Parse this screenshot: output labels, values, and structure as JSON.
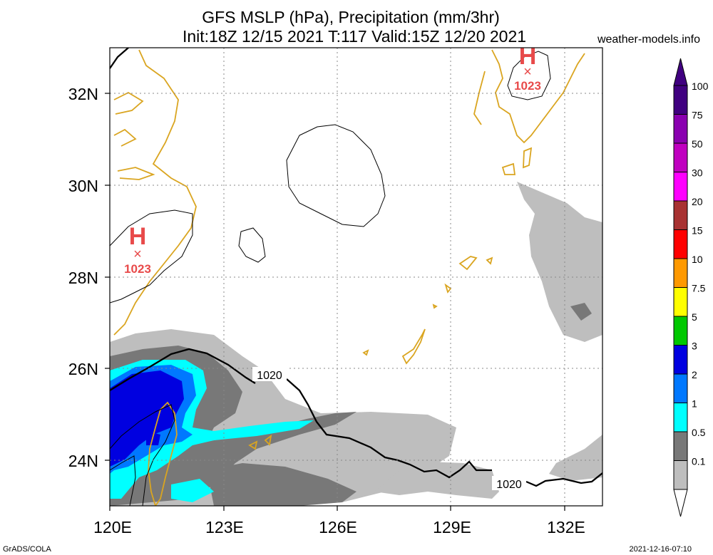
{
  "header": {
    "title_line1": "GFS MSLP (hPa), Precipitation (mm/3hr)",
    "title_line2": "Init:18Z 12/15 2021 T:117 Valid:15Z 12/20 2021",
    "site": "weather-models.info"
  },
  "footer": {
    "left": "GrADS/COLA",
    "right": "2021-12-16-07:10"
  },
  "map": {
    "lon_range": [
      120,
      133
    ],
    "lat_range": [
      23,
      33
    ],
    "lon_ticks": [
      "120E",
      "123E",
      "126E",
      "129E",
      "132E"
    ],
    "lat_ticks": [
      "32N",
      "30N",
      "28N",
      "26N",
      "24N"
    ],
    "coast_color": "#DAA520",
    "isobar_labels": [
      "1020",
      "1020"
    ],
    "pressure_centers": [
      {
        "symbol": "H",
        "value": "1023",
        "lon": 120.7,
        "lat": 28.6
      },
      {
        "symbol": "H",
        "value": "1023",
        "lon": 131.0,
        "lat": 32.5
      }
    ]
  },
  "legend": {
    "levels": [
      "100",
      "75",
      "50",
      "30",
      "20",
      "15",
      "10",
      "7.5",
      "5",
      "3",
      "2",
      "1",
      "0.5",
      "0.1"
    ],
    "colors": [
      "#400080",
      "#8A00B0",
      "#C000C0",
      "#FF00FF",
      "#A83232",
      "#FF0000",
      "#FF9900",
      "#FFFF00",
      "#00C800",
      "#0000E0",
      "#0078FF",
      "#00FFFF",
      "#787878",
      "#BEBEBE"
    ]
  }
}
